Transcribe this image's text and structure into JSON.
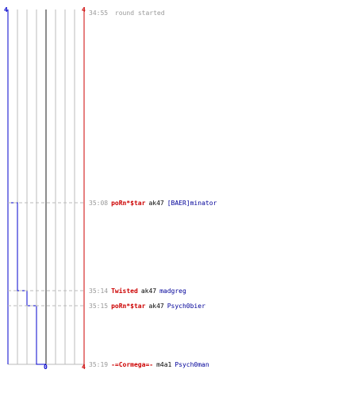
{
  "round": {
    "start_time": "34:55",
    "start_label": "round started"
  },
  "score": {
    "top_left": "4",
    "top_right": "4",
    "bottom_middle": "0",
    "bottom_right": "4"
  },
  "colors": {
    "blue_team": "#0000cc",
    "red_team": "#cc0000",
    "victim_name": "#000099",
    "timestamp": "#999999"
  },
  "blue_alive_steps": [
    4,
    3,
    2,
    1,
    0
  ],
  "kills": [
    {
      "time": "35:08",
      "killer": "poRn*$tar",
      "weapon": "ak47",
      "victim": "[BAER]minator"
    },
    {
      "time": "35:14",
      "killer": "Twisted",
      "weapon": "ak47",
      "victim": "madgreg"
    },
    {
      "time": "35:15",
      "killer": "poRn*$tar",
      "weapon": "ak47",
      "victim": "Psych0bier"
    },
    {
      "time": "35:19",
      "killer": "-=Cormega=-",
      "weapon": "m4a1",
      "victim": "Psych0man"
    }
  ]
}
